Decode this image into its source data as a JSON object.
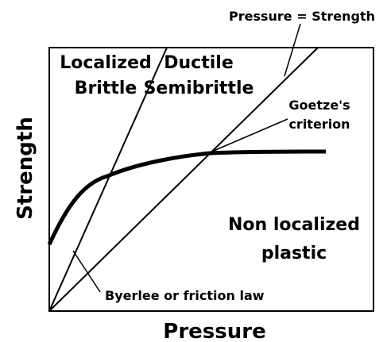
{
  "axes": {
    "x_label": "Pressure",
    "y_label": "Strength"
  },
  "labels": {
    "pressure_strength": "Pressure = Strength",
    "localized_brittle": [
      "Localized",
      "Brittle"
    ],
    "ductile_semibrittle": [
      "Ductile",
      "Semibrittle"
    ],
    "goetze": [
      "Goetze's",
      "criterion"
    ],
    "non_localized": [
      "Non localized",
      "plastic"
    ],
    "byerlee": "Byerlee or friction law"
  }
}
